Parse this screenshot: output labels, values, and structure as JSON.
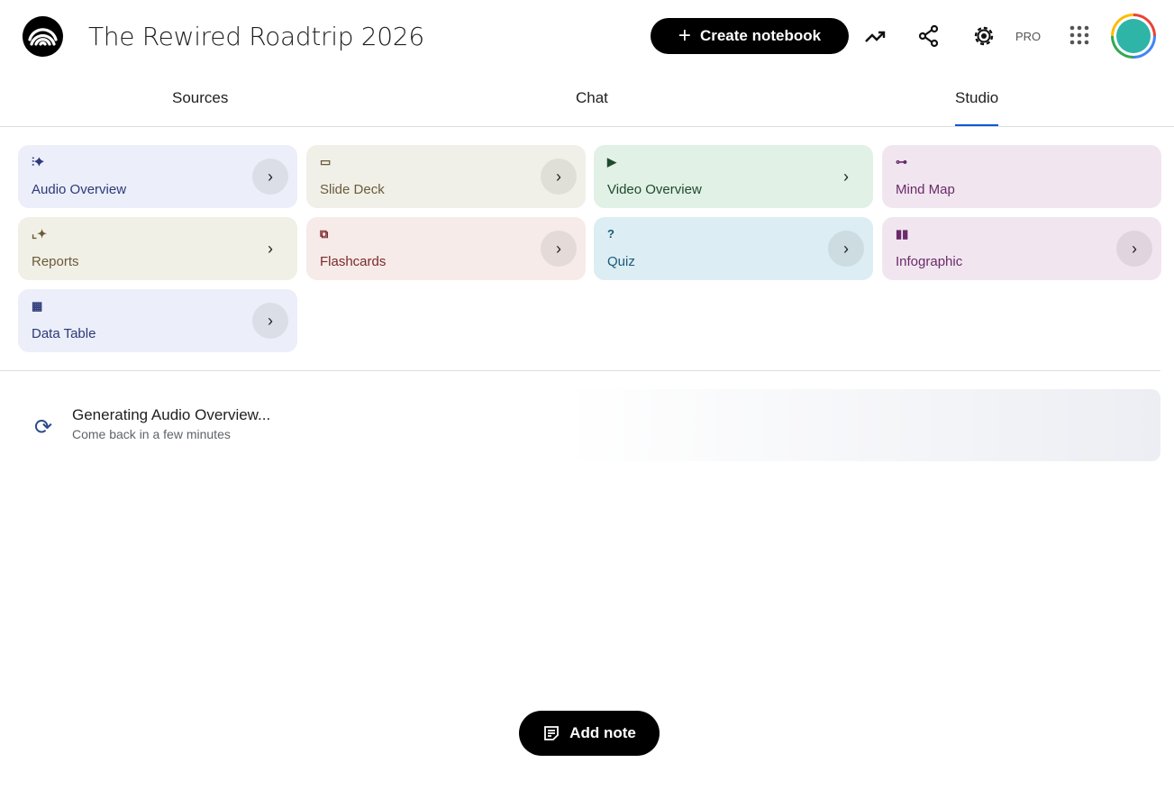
{
  "header": {
    "title": "The Rewired Roadtrip 2026",
    "create_label": "Create notebook",
    "pro_label": "PRO"
  },
  "tabs": [
    {
      "label": "Sources"
    },
    {
      "label": "Chat"
    },
    {
      "label": "Studio",
      "active": true
    }
  ],
  "studio": {
    "cards": [
      {
        "label": "Audio Overview",
        "icon": "audio-waveform-sparkle-icon",
        "bg": "#eceef9",
        "color": "#2b3a78"
      },
      {
        "label": "Slide Deck",
        "icon": "slides-icon",
        "bg": "#f1f0e8",
        "color": "#6b5a3a"
      },
      {
        "label": "Video Overview",
        "icon": "video-icon",
        "bg": "#e1f1e6",
        "color": "#1f4a2b"
      },
      {
        "label": "Mind Map",
        "icon": "mind-map-icon",
        "bg": "#f1e6ef",
        "color": "#6a2a6a"
      },
      {
        "label": "Reports",
        "icon": "report-sparkle-icon",
        "bg": "#f1f0e6",
        "color": "#6b5a3a"
      },
      {
        "label": "Flashcards",
        "icon": "flashcards-icon",
        "bg": "#f6ebe8",
        "color": "#7a2a2a"
      },
      {
        "label": "Quiz",
        "icon": "quiz-icon",
        "bg": "#dcedf3",
        "color": "#1a5a7a"
      },
      {
        "label": "Infographic",
        "icon": "infographic-icon",
        "bg": "#f1e6ef",
        "color": "#6a2a6a"
      },
      {
        "label": "Data Table",
        "icon": "table-icon",
        "bg": "#eceef9",
        "color": "#2b3a78"
      }
    ]
  },
  "generating": {
    "title": "Generating Audio Overview...",
    "subtitle": "Come back in a few minutes"
  },
  "add_note_label": "Add note"
}
